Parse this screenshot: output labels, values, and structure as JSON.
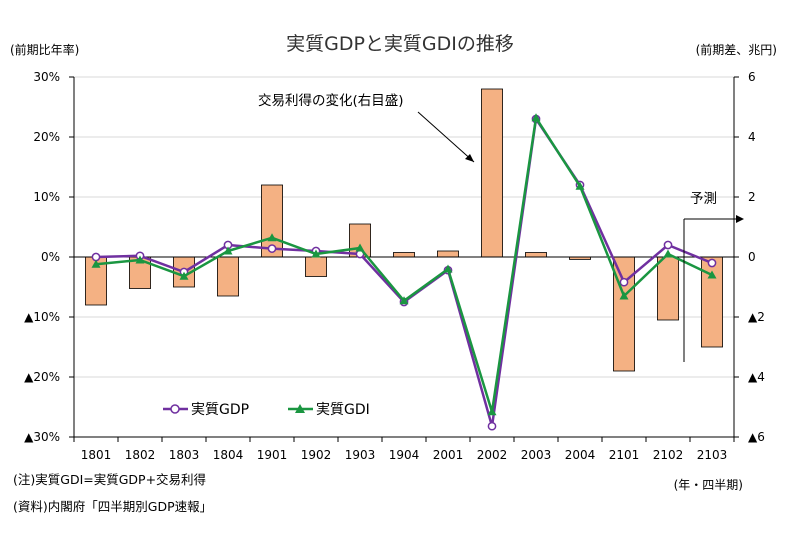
{
  "chart_data": {
    "type": "bar+line",
    "title": "実質GDPと実質GDIの推移",
    "ylabel_left": "(前期比年率)",
    "ylabel_right": "(前期差、兆円)",
    "xlabel": "(年・四半期)",
    "categories": [
      "1801",
      "1802",
      "1803",
      "1804",
      "1901",
      "1902",
      "1903",
      "1904",
      "2001",
      "2002",
      "2003",
      "2004",
      "2101",
      "2102",
      "2103"
    ],
    "ylim_left": [
      -30,
      30
    ],
    "ylim_right": [
      -6,
      6
    ],
    "yticks_left": [
      "30%",
      "20%",
      "10%",
      "0%",
      "▲10%",
      "▲20%",
      "▲30%"
    ],
    "yticks_right": [
      "6",
      "4",
      "2",
      "0",
      "▲2",
      "▲4",
      "▲6"
    ],
    "series": [
      {
        "name": "実質GDP",
        "type": "line",
        "axis": "left",
        "color": "#7030a0",
        "marker": "circle",
        "values": [
          0.0,
          0.2,
          -2.5,
          2.0,
          1.4,
          1.0,
          0.5,
          -7.5,
          -2.2,
          -28.2,
          23.0,
          12.0,
          -4.2,
          2.0,
          -1.0
        ]
      },
      {
        "name": "実質GDI",
        "type": "line",
        "axis": "left",
        "color": "#1a9641",
        "marker": "triangle",
        "values": [
          -1.2,
          -0.5,
          -3.2,
          1.0,
          3.2,
          0.5,
          1.5,
          -7.3,
          -2.0,
          -25.8,
          23.2,
          11.8,
          -6.5,
          0.5,
          -3.0
        ]
      },
      {
        "name": "交易利得の変化(右目盛)",
        "type": "bar",
        "axis": "right",
        "color": "#f4b183",
        "values": [
          -1.6,
          -1.05,
          -1.0,
          -1.3,
          2.4,
          -0.65,
          1.1,
          0.15,
          0.2,
          5.6,
          0.15,
          -0.08,
          -3.8,
          -2.1,
          -3.0
        ]
      }
    ],
    "legend": {
      "position": "bottom-left",
      "items": [
        "実質GDP",
        "実質GDI"
      ]
    },
    "annotations": [
      "交易利得の変化(右目盛)",
      "予測"
    ],
    "forecast_from": "2102",
    "grid": true
  },
  "notes": [
    "(注)実質GDI=実質GDP+交易利得",
    "(資料)内閣府「四半期別GDP速報」"
  ]
}
